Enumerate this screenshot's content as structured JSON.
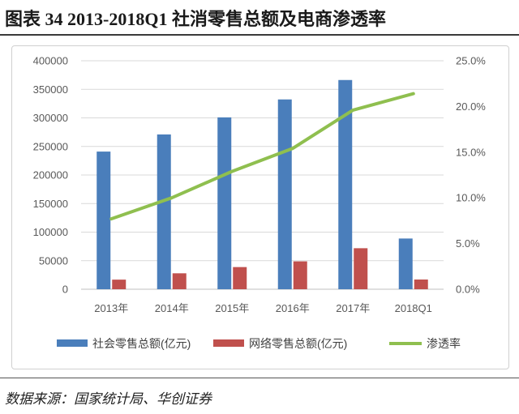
{
  "title": "图表 34   2013-2018Q1 社消零售总额及电商渗透率",
  "source": "数据来源：国家统计局、华创证券",
  "chart_data": {
    "type": "bar+line",
    "categories": [
      "2013年",
      "2014年",
      "2015年",
      "2016年",
      "2017年",
      "2018Q1"
    ],
    "series": [
      {
        "name": "社会零售总额(亿元)",
        "type": "bar",
        "axis": "left",
        "color": "#4a7ebb",
        "values": [
          241000,
          271000,
          300900,
          332300,
          366300,
          88800
        ]
      },
      {
        "name": "网络零售总额(亿元)",
        "type": "bar",
        "axis": "left",
        "color": "#c0504d",
        "values": [
          16800,
          27900,
          38800,
          48800,
          71800,
          17000
        ]
      },
      {
        "name": "渗透率",
        "type": "line",
        "axis": "right",
        "color": "#8fbf4f",
        "values": [
          7.7,
          10.0,
          12.9,
          15.4,
          19.6,
          21.4
        ]
      }
    ],
    "y_left": {
      "min": 0,
      "max": 400000,
      "step": 50000,
      "ticks": [
        "0",
        "50000",
        "100000",
        "150000",
        "200000",
        "250000",
        "300000",
        "350000",
        "400000"
      ]
    },
    "y_right": {
      "min": 0,
      "max": 25,
      "step": 5,
      "ticks": [
        "0.0%",
        "5.0%",
        "10.0%",
        "15.0%",
        "20.0%",
        "25.0%"
      ]
    },
    "grid": true,
    "legend": "bottom"
  }
}
